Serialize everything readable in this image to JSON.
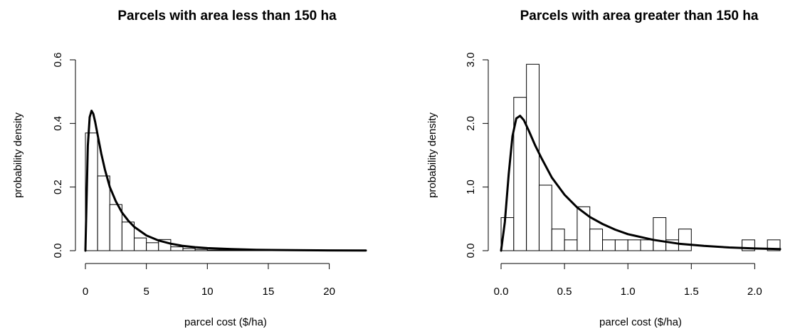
{
  "chart_data": [
    {
      "type": "bar",
      "subtype": "histogram-with-density-curve",
      "title": "Parcels with area less than 150 ha",
      "xlabel": "parcel cost ($/ha)",
      "ylabel": "probability density",
      "xlim": [
        0,
        23
      ],
      "ylim": [
        0,
        0.6
      ],
      "x_ticks": [
        0,
        5,
        10,
        15,
        20
      ],
      "y_ticks": [
        0.0,
        0.2,
        0.4,
        0.6
      ],
      "x_tick_labels": [
        "0",
        "5",
        "10",
        "15",
        "20"
      ],
      "y_tick_labels": [
        "0.0",
        "0.2",
        "0.4",
        "0.6"
      ],
      "bin_edges": [
        0,
        1,
        2,
        3,
        4,
        5,
        6,
        7,
        8,
        9,
        10,
        11,
        12,
        13,
        14,
        15,
        16,
        17,
        18,
        19,
        20,
        21,
        22,
        23
      ],
      "bin_values": [
        0.37,
        0.235,
        0.145,
        0.09,
        0.04,
        0.025,
        0.035,
        0.012,
        0.007,
        0.004,
        0.002,
        0.002,
        0.002,
        0.001,
        0.002,
        0.001,
        0.001,
        0.002,
        0.001,
        0.001,
        0.001,
        0.001,
        0.001
      ],
      "curve": {
        "x": [
          0,
          0.2,
          0.35,
          0.5,
          0.65,
          0.8,
          1.0,
          1.3,
          1.6,
          2.0,
          2.5,
          3.0,
          3.5,
          4.0,
          5.0,
          6.0,
          7.0,
          8.0,
          9.0,
          10.0,
          12.0,
          14.0,
          17.0,
          20.0,
          23.0
        ],
        "y": [
          0,
          0.33,
          0.42,
          0.44,
          0.43,
          0.405,
          0.365,
          0.305,
          0.255,
          0.2,
          0.155,
          0.12,
          0.095,
          0.075,
          0.048,
          0.032,
          0.022,
          0.015,
          0.011,
          0.008,
          0.005,
          0.003,
          0.0015,
          0.0008,
          0.0004
        ]
      }
    },
    {
      "type": "bar",
      "subtype": "histogram-with-density-curve",
      "title": "Parcels with area greater than 150 ha",
      "xlabel": "parcel cost ($/ha)",
      "ylabel": "probability density",
      "xlim": [
        0,
        2.2
      ],
      "ylim": [
        0,
        3.0
      ],
      "x_ticks": [
        0.0,
        0.5,
        1.0,
        1.5,
        2.0
      ],
      "y_ticks": [
        0.0,
        1.0,
        2.0,
        3.0
      ],
      "x_tick_labels": [
        "0.0",
        "0.5",
        "1.0",
        "1.5",
        "2.0"
      ],
      "y_tick_labels": [
        "0.0",
        "1.0",
        "2.0",
        "3.0"
      ],
      "bin_edges": [
        0,
        0.1,
        0.2,
        0.3,
        0.4,
        0.5,
        0.6,
        0.7,
        0.8,
        0.9,
        1.0,
        1.1,
        1.2,
        1.3,
        1.4,
        1.5,
        1.6,
        1.7,
        1.8,
        1.9,
        2.0,
        2.1,
        2.2
      ],
      "bin_values": [
        0.52,
        2.41,
        2.93,
        1.03,
        0.34,
        0.17,
        0.69,
        0.34,
        0.17,
        0.17,
        0.17,
        0.17,
        0.52,
        0.17,
        0.34,
        0.0,
        0.0,
        0.0,
        0.0,
        0.17,
        0.0,
        0.17
      ],
      "curve": {
        "x": [
          0,
          0.03,
          0.06,
          0.09,
          0.12,
          0.15,
          0.18,
          0.22,
          0.27,
          0.32,
          0.4,
          0.5,
          0.6,
          0.7,
          0.8,
          0.9,
          1.0,
          1.2,
          1.4,
          1.6,
          1.8,
          2.0,
          2.2
        ],
        "y": [
          0,
          0.45,
          1.2,
          1.8,
          2.08,
          2.12,
          2.05,
          1.88,
          1.65,
          1.45,
          1.15,
          0.88,
          0.68,
          0.53,
          0.42,
          0.33,
          0.26,
          0.17,
          0.11,
          0.075,
          0.05,
          0.035,
          0.025
        ]
      }
    }
  ]
}
